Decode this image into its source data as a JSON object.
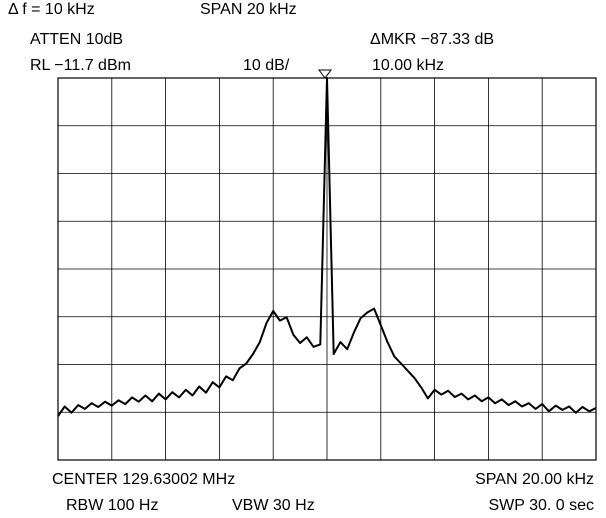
{
  "chart_data": {
    "type": "line",
    "annotations": [
      "Δ f = 10 kHz",
      "SPAN 20 kHz",
      "ATTEN 10dB",
      "ΔMKR −87.33 dB",
      "RL −11.7 dBm",
      "10 dB/",
      "10.00 kHz",
      "CENTER 129.63002 MHz",
      "SPAN 20.00 kHz",
      "RBW 100 Hz",
      "VBW 30 Hz",
      "SWP 30. 0 sec"
    ],
    "x": [
      -10,
      -9.75,
      -9.5,
      -9.25,
      -9,
      -8.75,
      -8.5,
      -8.25,
      -8,
      -7.75,
      -7.5,
      -7.25,
      -7,
      -6.75,
      -6.5,
      -6.25,
      -6,
      -5.75,
      -5.5,
      -5.25,
      -5,
      -4.75,
      -4.5,
      -4.25,
      -4,
      -3.75,
      -3.5,
      -3.25,
      -3,
      -2.75,
      -2.5,
      -2.25,
      -2,
      -1.75,
      -1.5,
      -1.25,
      -1,
      -0.75,
      -0.5,
      -0.25,
      0,
      0.25,
      0.5,
      0.75,
      1,
      1.25,
      1.5,
      1.75,
      2,
      2.25,
      2.5,
      2.75,
      3,
      3.25,
      3.5,
      3.75,
      4,
      4.25,
      4.5,
      4.75,
      5,
      5.25,
      5.5,
      5.75,
      6,
      6.25,
      6.5,
      6.75,
      7,
      7.25,
      7.5,
      7.75,
      8,
      8.25,
      8.5,
      8.75,
      9,
      9.25,
      9.5,
      9.75,
      10
    ],
    "series": [
      {
        "color": "#000000",
        "values": [
          -82.5,
          -80.5,
          -81.8,
          -80.2,
          -81,
          -79.8,
          -80.6,
          -79.5,
          -80.3,
          -79.2,
          -80,
          -78.6,
          -79.5,
          -78.2,
          -79.4,
          -77.8,
          -79,
          -77.5,
          -78.6,
          -77,
          -78.2,
          -76.3,
          -77.6,
          -75.4,
          -76.5,
          -74.2,
          -75,
          -72.5,
          -71.5,
          -69.5,
          -67,
          -63,
          -60.5,
          -62.5,
          -61.8,
          -65.5,
          -67.2,
          -66,
          -68,
          -67.5,
          -11.7,
          -69.5,
          -67,
          -68.5,
          -65,
          -62,
          -60.8,
          -60,
          -63.5,
          -67,
          -70,
          -71.5,
          -73,
          -74.5,
          -76.5,
          -78.8,
          -77,
          -78,
          -77.2,
          -78.5,
          -77.8,
          -79,
          -78.2,
          -79.4,
          -78.6,
          -79.8,
          -79,
          -80.2,
          -79.4,
          -80.5,
          -79.8,
          -81,
          -80,
          -81.5,
          -80.3,
          -81.2,
          -80.5,
          -81.8,
          -80.6,
          -81.5,
          -80.8
        ]
      }
    ],
    "xlim": [
      -10,
      10
    ],
    "ylim": [
      -91.7,
      -11.7
    ],
    "xticks": [
      -10,
      -8,
      -6,
      -4,
      -2,
      0,
      2,
      4,
      6,
      8,
      10
    ],
    "yticks": [
      -91.7,
      -81.7,
      -71.7,
      -61.7,
      -51.7,
      -41.7,
      -31.7,
      -21.7,
      -11.7
    ],
    "grid": true
  }
}
